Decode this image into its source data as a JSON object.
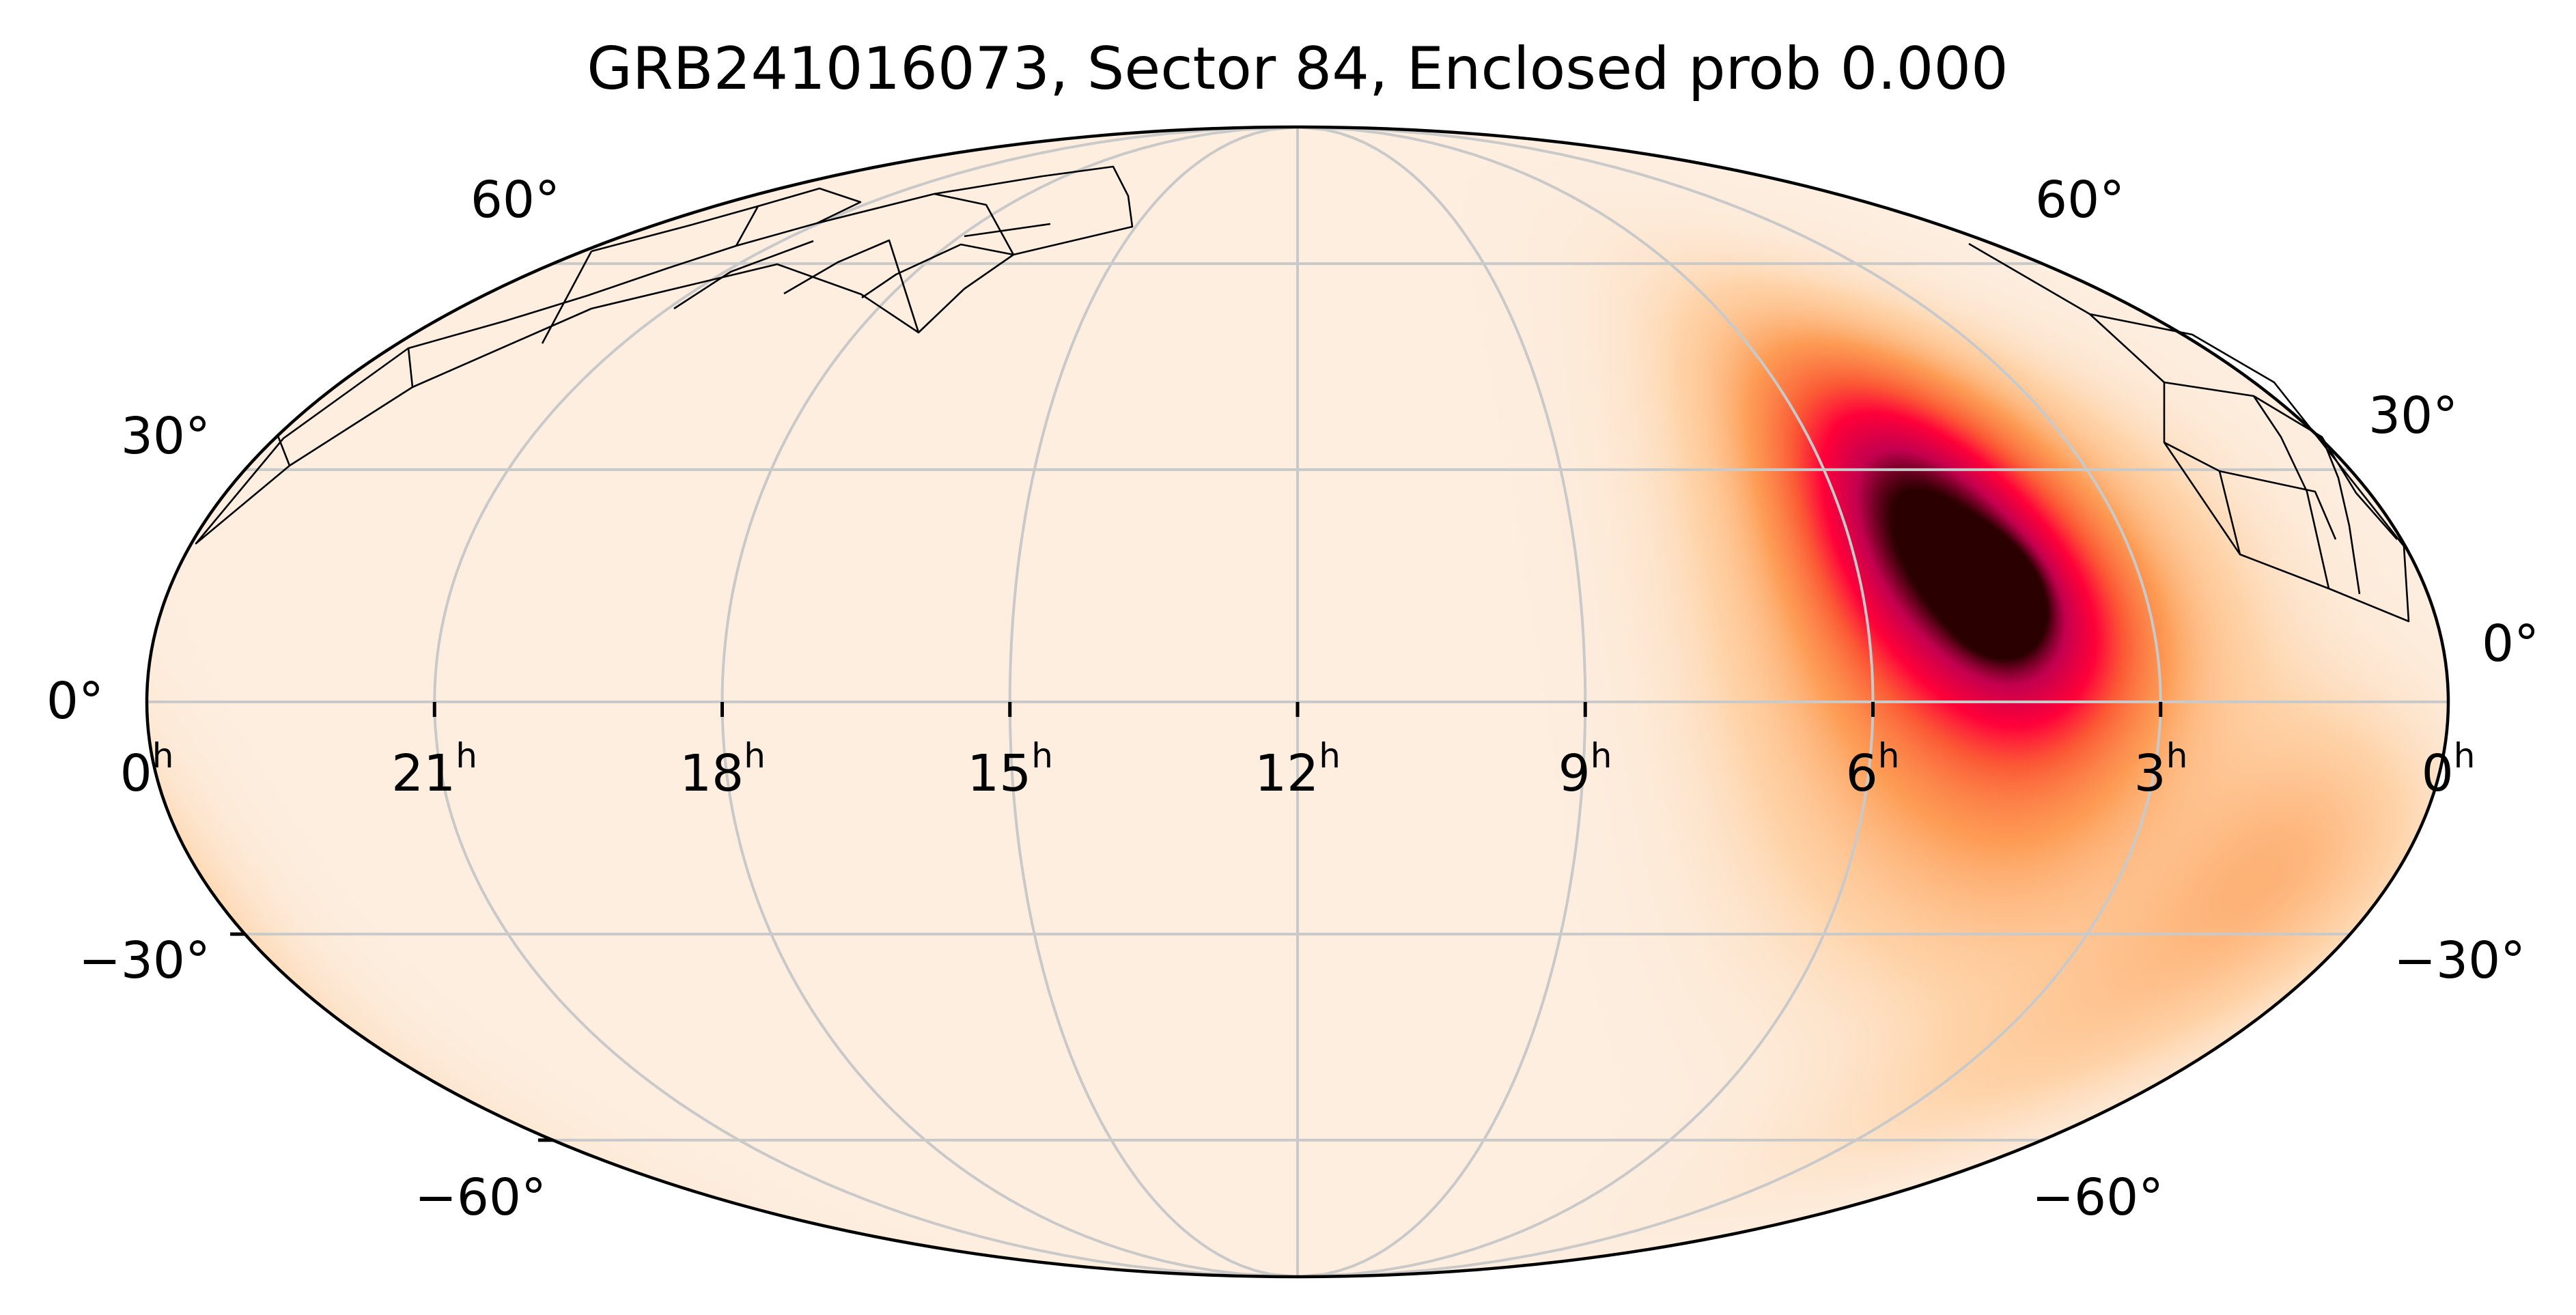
{
  "figure": {
    "title": "GRB241016073, Sector 84, Enclosed prob 0.000"
  },
  "projection": "mollweide",
  "colors": {
    "background": "#fdeee0",
    "frame": "#000000",
    "grid": "#c9c9c9",
    "footprint": "#000000",
    "colormap": [
      "#fdeee0",
      "#fed3a8",
      "#fd9c55",
      "#fb5a35",
      "#ff003a",
      "#c4004f",
      "#2a0000"
    ]
  },
  "ra_ticks": [
    {
      "hour": "0",
      "sup": "h"
    },
    {
      "hour": "21",
      "sup": "h"
    },
    {
      "hour": "18",
      "sup": "h"
    },
    {
      "hour": "15",
      "sup": "h"
    },
    {
      "hour": "12",
      "sup": "h"
    },
    {
      "hour": "9",
      "sup": "h"
    },
    {
      "hour": "6",
      "sup": "h"
    },
    {
      "hour": "3",
      "sup": "h"
    },
    {
      "hour": "0",
      "sup": "h"
    }
  ],
  "dec_ticks": {
    "left": [
      "60°",
      "30°",
      "0°",
      "−30°",
      "−60°"
    ],
    "right": [
      "60°",
      "30°",
      "0°",
      "−30°",
      "−60°"
    ]
  },
  "probability_sources": [
    {
      "ra_deg": 69.0,
      "dec_deg": 14.0,
      "amplitude": 1.0,
      "sigma_deg": 4.0
    },
    {
      "ra_deg": 78.0,
      "dec_deg": 19.0,
      "amplitude": 0.55,
      "sigma_deg": 11.0
    },
    {
      "ra_deg": 65.0,
      "dec_deg": 9.0,
      "amplitude": 0.45,
      "sigma_deg": 10.0
    },
    {
      "ra_deg": 76.0,
      "dec_deg": 30.0,
      "amplitude": 0.35,
      "sigma_deg": 11.0
    },
    {
      "ra_deg": 72.0,
      "dec_deg": 10.0,
      "amplitude": 0.3,
      "sigma_deg": 20.0
    },
    {
      "ra_deg": 20.0,
      "dec_deg": -21.0,
      "amplitude": 0.09,
      "sigma_deg": 12.0
    },
    {
      "ra_deg": 35.0,
      "dec_deg": -40.0,
      "amplitude": 0.05,
      "sigma_deg": 15.0
    },
    {
      "ra_deg": 60.0,
      "dec_deg": -15.0,
      "amplitude": 0.04,
      "sigma_deg": 12.0
    }
  ]
}
